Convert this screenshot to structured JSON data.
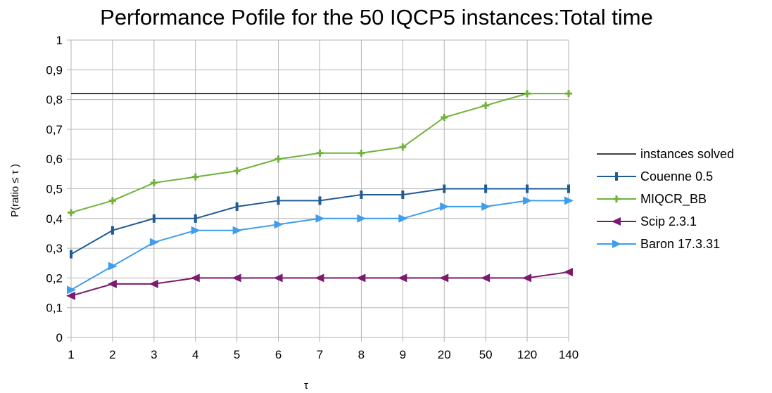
{
  "chart_data": {
    "type": "line",
    "title": "Performance Pofile for the 50 IQCP5 instances:Total time",
    "xlabel": "τ",
    "ylabel": "P(ratio ≤ τ )",
    "categories": [
      "1",
      "2",
      "3",
      "4",
      "5",
      "6",
      "7",
      "8",
      "9",
      "20",
      "50",
      "120",
      "140"
    ],
    "ylim": [
      0,
      1
    ],
    "yticks": [
      "0",
      "0,1",
      "0,2",
      "0,3",
      "0,4",
      "0,5",
      "0,6",
      "0,7",
      "0,8",
      "0,9",
      "1"
    ],
    "grid": true,
    "legend_position": "right",
    "series": [
      {
        "name": "instances solved",
        "color": "#000000",
        "marker": "none",
        "values": [
          0.82,
          0.82,
          0.82,
          0.82,
          0.82,
          0.82,
          0.82,
          0.82,
          0.82,
          0.82,
          0.82,
          0.82,
          0.82
        ]
      },
      {
        "name": "Couenne 0.5",
        "color": "#1f5b96",
        "marker": "bar",
        "values": [
          0.28,
          0.36,
          0.4,
          0.4,
          0.44,
          0.46,
          0.46,
          0.48,
          0.48,
          0.5,
          0.5,
          0.5,
          0.5
        ]
      },
      {
        "name": "MIQCR_BB",
        "color": "#6fb23b",
        "marker": "plus",
        "values": [
          0.42,
          0.46,
          0.52,
          0.54,
          0.56,
          0.6,
          0.62,
          0.62,
          0.64,
          0.74,
          0.78,
          0.82,
          0.82
        ]
      },
      {
        "name": "Scip 2.3.1",
        "color": "#7b1a6e",
        "marker": "triangle-left",
        "values": [
          0.14,
          0.18,
          0.18,
          0.2,
          0.2,
          0.2,
          0.2,
          0.2,
          0.2,
          0.2,
          0.2,
          0.2,
          0.22
        ]
      },
      {
        "name": "Baron 17.3.31",
        "color": "#3f9ded",
        "marker": "triangle-right",
        "values": [
          0.16,
          0.24,
          0.32,
          0.36,
          0.36,
          0.38,
          0.4,
          0.4,
          0.4,
          0.44,
          0.44,
          0.46,
          0.46
        ]
      }
    ]
  }
}
